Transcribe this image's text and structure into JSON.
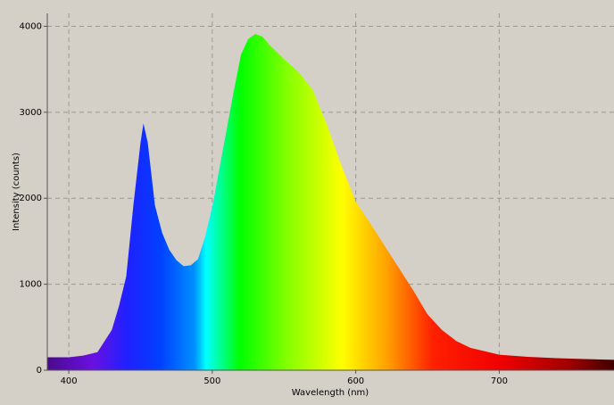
{
  "chart_data": {
    "type": "area",
    "x_label": "Wavelength (nm)",
    "y_label": "Intensity (counts)",
    "x": [
      385,
      400,
      410,
      420,
      430,
      435,
      440,
      445,
      450,
      452,
      455,
      460,
      465,
      470,
      475,
      480,
      485,
      490,
      495,
      500,
      505,
      510,
      515,
      520,
      525,
      530,
      535,
      540,
      545,
      550,
      560,
      570,
      580,
      590,
      600,
      610,
      620,
      630,
      640,
      650,
      660,
      670,
      680,
      690,
      700,
      720,
      740,
      760,
      780
    ],
    "values": [
      150,
      150,
      170,
      210,
      470,
      750,
      1090,
      1920,
      2650,
      2870,
      2650,
      1920,
      1600,
      1400,
      1280,
      1210,
      1220,
      1290,
      1550,
      1900,
      2350,
      2800,
      3250,
      3670,
      3850,
      3910,
      3880,
      3780,
      3700,
      3620,
      3470,
      3260,
      2850,
      2380,
      1960,
      1710,
      1450,
      1190,
      930,
      650,
      470,
      340,
      260,
      220,
      180,
      155,
      140,
      130,
      120
    ],
    "xlim": [
      385,
      780
    ],
    "ylim": [
      0,
      4150
    ],
    "xticks": [
      400,
      500,
      600,
      700
    ],
    "yticks": [
      0,
      1000,
      2000,
      3000,
      4000
    ],
    "grid": true
  }
}
